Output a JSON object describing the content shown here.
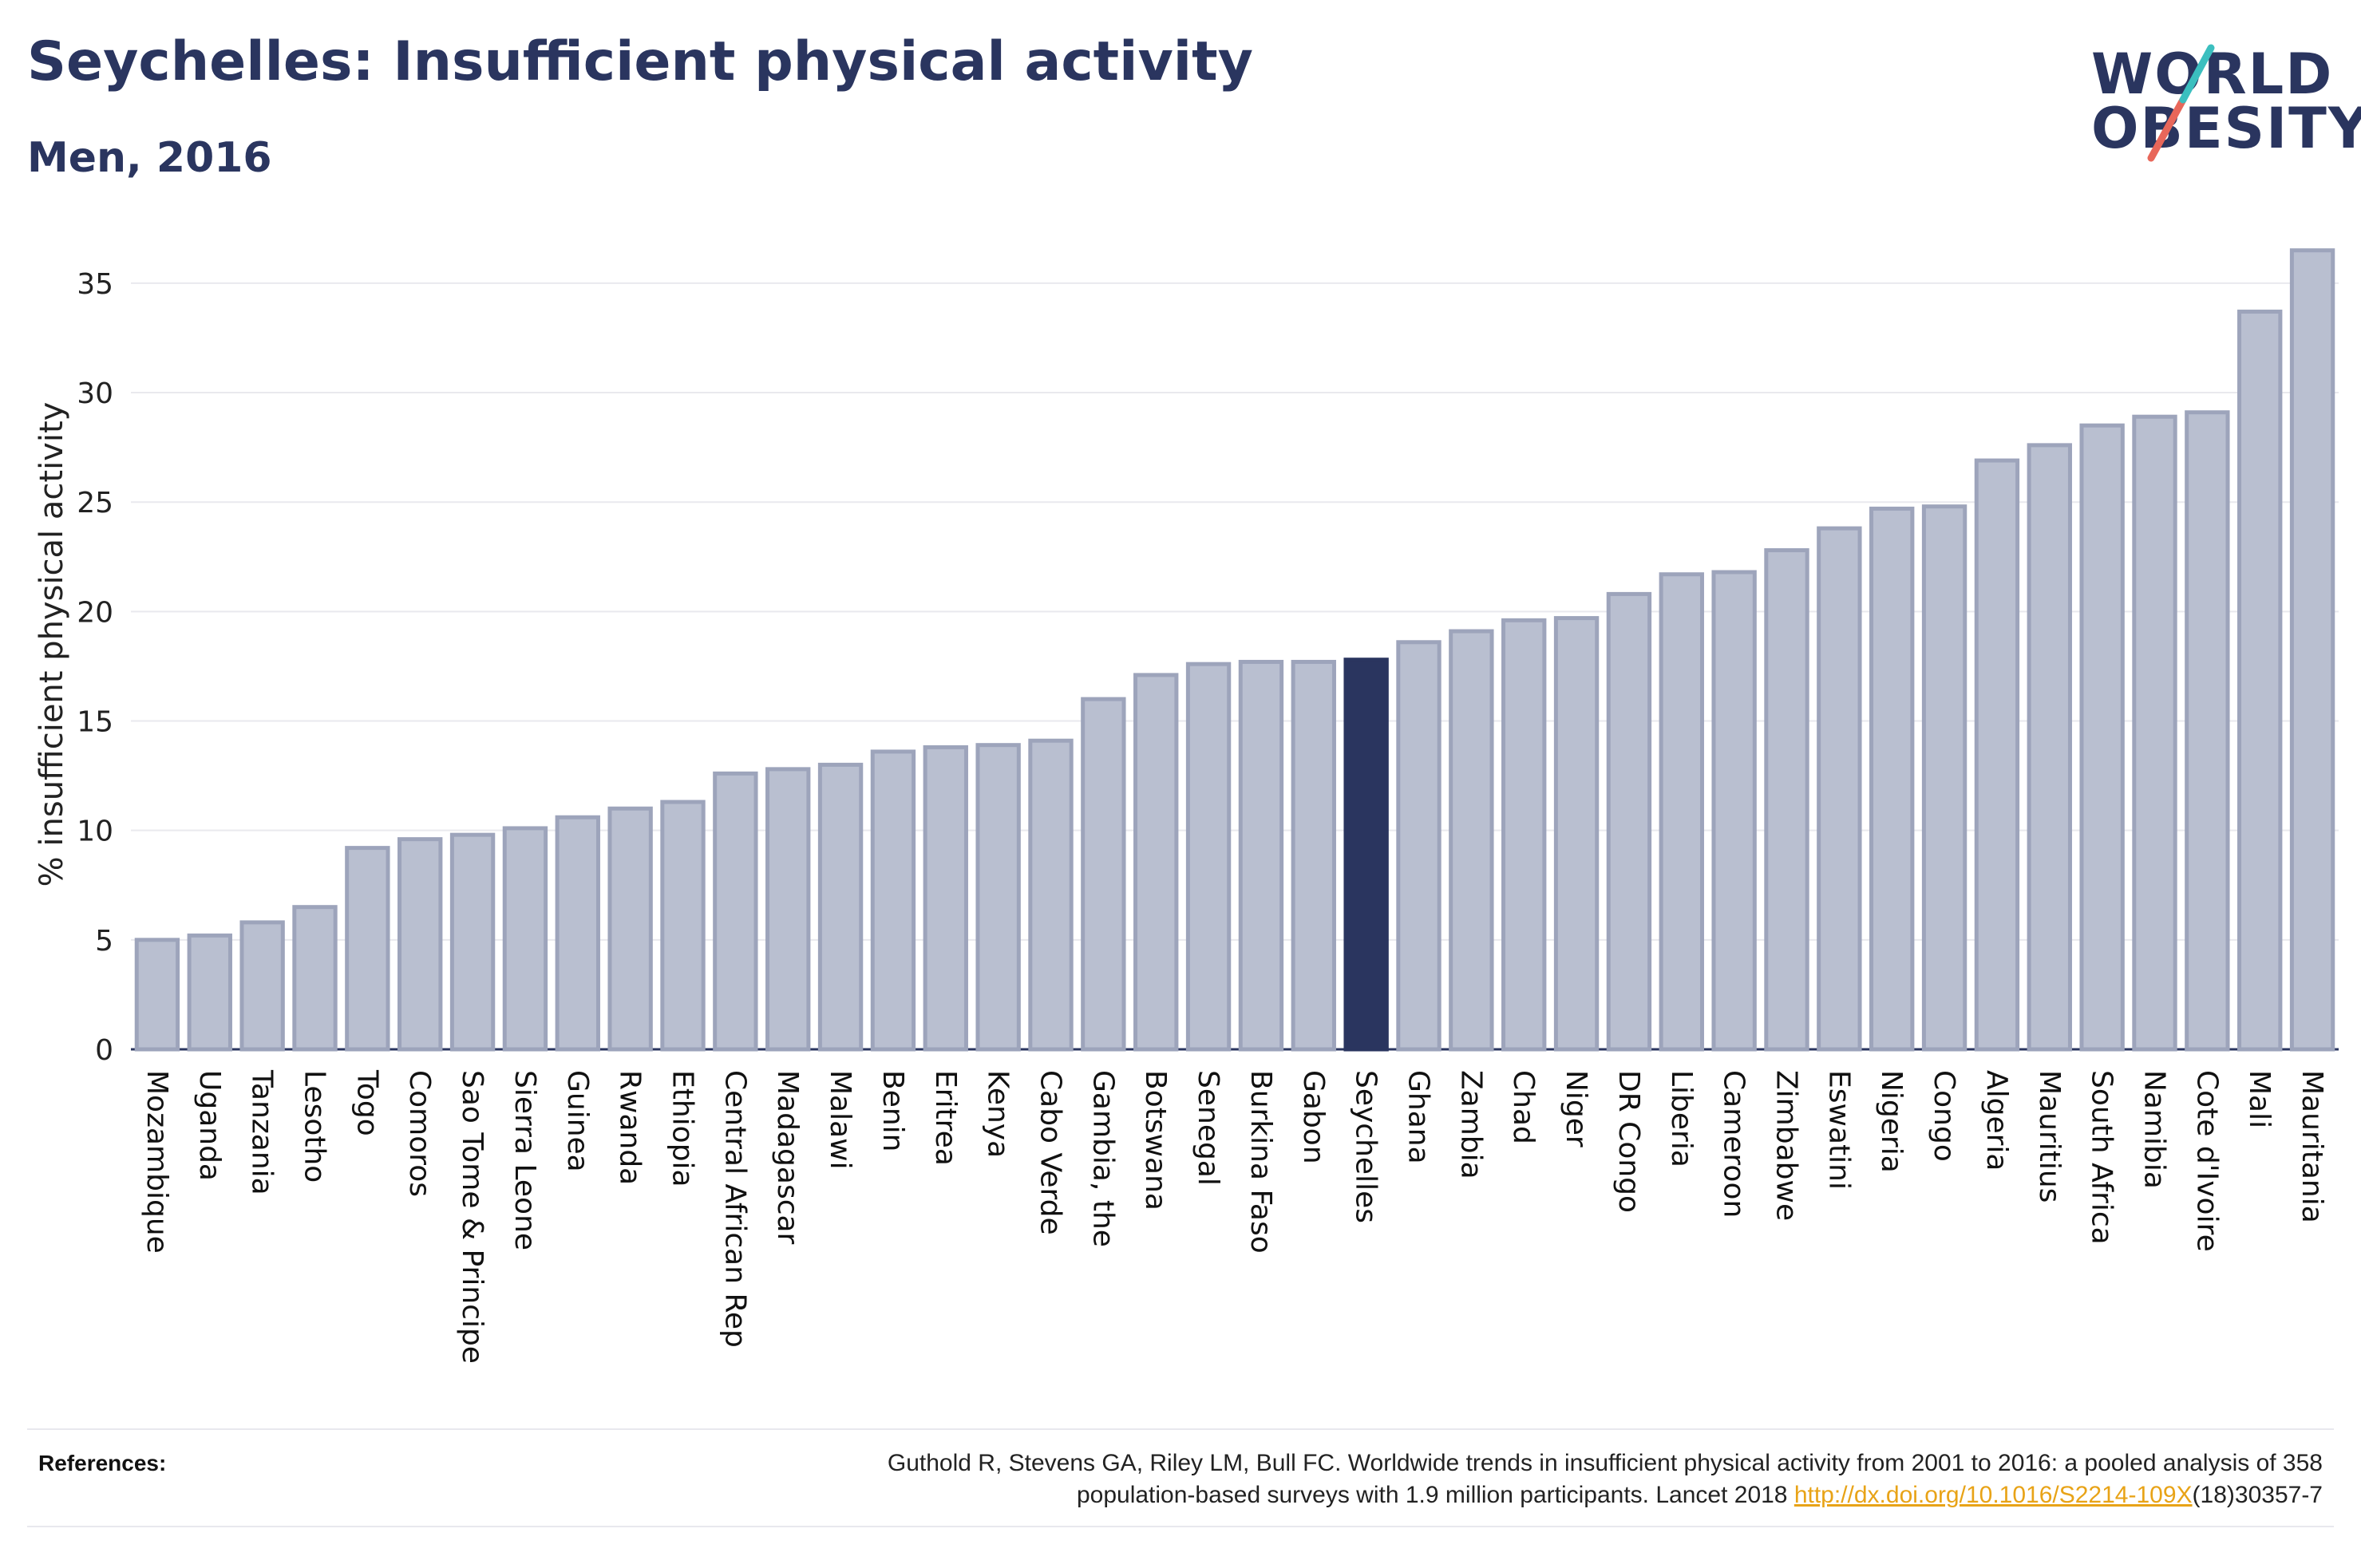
{
  "title": "Seychelles: Insufficient physical activity",
  "subtitle": "Men, 2016",
  "logo": {
    "line1": "WORLD",
    "line2": "OBESITY"
  },
  "references": {
    "label": "References:",
    "text_line1": "Guthold R, Stevens GA, Riley LM, Bull FC. Worldwide trends in insufficient physical activity from 2001 to 2016: a pooled analysis of 358",
    "text_line2_pre": "population-based surveys with 1.9 million participants. Lancet 2018 ",
    "link_text": "http://dx.doi.org/10.1016/S2214-109X",
    "text_line2_post": "(18)30357-7"
  },
  "colors": {
    "bar": "#b9bfd0",
    "bar_stroke": "#9da4bb",
    "highlight": "#2a355f",
    "grid": "#e9e9ee",
    "text": "#2a355f",
    "link": "#e8a317"
  },
  "chart_data": {
    "type": "bar",
    "title": "Seychelles: Insufficient physical activity",
    "subtitle": "Men, 2016",
    "xlabel": "",
    "ylabel": "% insufficient physical activity",
    "ylim": [
      0,
      37
    ],
    "yticks": [
      0,
      5,
      10,
      15,
      20,
      25,
      30,
      35
    ],
    "grid": true,
    "highlight": "Seychelles",
    "categories": [
      "Mozambique",
      "Uganda",
      "Tanzania",
      "Lesotho",
      "Togo",
      "Comoros",
      "Sao Tome & Principe",
      "Sierra Leone",
      "Guinea",
      "Rwanda",
      "Ethiopia",
      "Central African Rep",
      "Madagascar",
      "Malawi",
      "Benin",
      "Eritrea",
      "Kenya",
      "Cabo Verde",
      "Gambia, the",
      "Botswana",
      "Senegal",
      "Burkina Faso",
      "Gabon",
      "Seychelles",
      "Ghana",
      "Zambia",
      "Chad",
      "Niger",
      "DR Congo",
      "Liberia",
      "Cameroon",
      "Zimbabwe",
      "Eswatini",
      "Nigeria",
      "Congo",
      "Algeria",
      "Mauritius",
      "South Africa",
      "Namibia",
      "Cote d'Ivoire",
      "Mali",
      "Mauritania"
    ],
    "values": [
      5.0,
      5.2,
      5.8,
      6.5,
      9.2,
      9.6,
      9.8,
      10.1,
      10.6,
      11.0,
      11.3,
      12.6,
      12.8,
      13.0,
      13.6,
      13.8,
      13.9,
      14.1,
      16.0,
      17.1,
      17.6,
      17.7,
      17.7,
      17.8,
      18.6,
      19.1,
      19.6,
      19.7,
      20.8,
      21.7,
      21.8,
      22.8,
      23.8,
      24.7,
      24.8,
      26.9,
      27.6,
      28.5,
      28.9,
      29.1,
      33.7,
      36.5
    ]
  }
}
